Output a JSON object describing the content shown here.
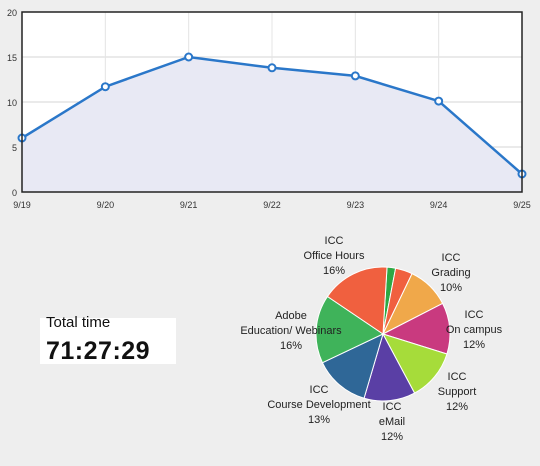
{
  "chart_data": [
    {
      "type": "line",
      "categories": [
        "9/19",
        "9/20",
        "9/21",
        "9/22",
        "9/23",
        "9/24",
        "9/25"
      ],
      "series": [
        {
          "values": [
            6,
            11.7,
            15,
            13.8,
            12.9,
            10.1,
            2
          ]
        }
      ],
      "ylim": [
        0,
        20
      ],
      "yticks": [
        0,
        5,
        10,
        15,
        20
      ],
      "grid": true,
      "colors": {
        "line": "#2a77c9",
        "area": "#e8e9f4",
        "marker_fill": "#ffffff"
      }
    },
    {
      "type": "pie",
      "slices": [
        {
          "label_lines": [
            "ICC",
            "Grading"
          ],
          "percent_label": "10%",
          "value": 10,
          "color": "#f0a84a"
        },
        {
          "label_lines": [
            "ICC",
            "On campus"
          ],
          "percent_label": "12%",
          "value": 12,
          "color": "#c93a7f"
        },
        {
          "label_lines": [
            "ICC",
            "Support"
          ],
          "percent_label": "12%",
          "value": 12,
          "color": "#a6dc3a"
        },
        {
          "label_lines": [
            "ICC",
            "eMail"
          ],
          "percent_label": "12%",
          "value": 12,
          "color": "#5a3fa5"
        },
        {
          "label_lines": [
            "ICC",
            "Course Development"
          ],
          "percent_label": "13%",
          "value": 13,
          "color": "#2f6797"
        },
        {
          "label_lines": [
            "Adobe",
            "Education/ Webinars"
          ],
          "percent_label": "16%",
          "value": 16,
          "color": "#3fb35a"
        },
        {
          "label_lines": [
            "ICC",
            "Office Hours"
          ],
          "percent_label": "16%",
          "value": 16,
          "color": "#f0603f"
        }
      ],
      "small_slices": [
        {
          "value": 2,
          "color": "#2da844"
        },
        {
          "value": 4,
          "color": "#f0603f"
        }
      ]
    }
  ],
  "summary": {
    "total_label": "Total time",
    "total_value": "71:27:29"
  }
}
